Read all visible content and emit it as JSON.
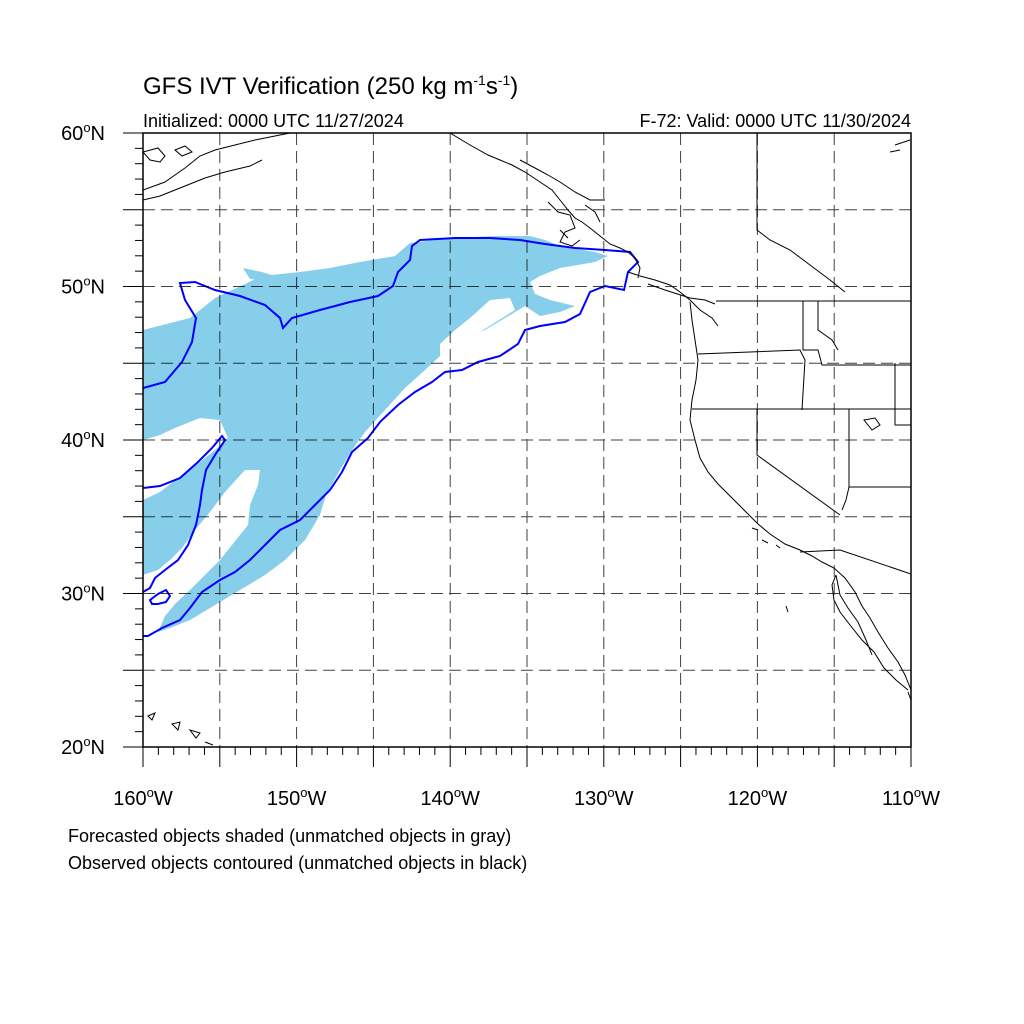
{
  "header": {
    "title_main": "GFS IVT Verification (250 kg m",
    "title_sup1": "-1",
    "title_mid": "s",
    "title_sup2": "-1",
    "title_end": ")",
    "initialized": "Initialized: 0000 UTC 11/27/2024",
    "valid": "F-72: Valid: 0000 UTC 11/30/2024"
  },
  "map": {
    "extent": {
      "lon_min": -160,
      "lon_max": -110,
      "lat_min": 20,
      "lat_max": 60
    },
    "lat_labels": [
      {
        "lat": 60,
        "deg": "60",
        "hemi": "N"
      },
      {
        "lat": 50,
        "deg": "50",
        "hemi": "N"
      },
      {
        "lat": 40,
        "deg": "40",
        "hemi": "N"
      },
      {
        "lat": 30,
        "deg": "30",
        "hemi": "N"
      },
      {
        "lat": 20,
        "deg": "20",
        "hemi": "N"
      }
    ],
    "lon_labels": [
      {
        "lon": -160,
        "deg": "160",
        "hemi": "W"
      },
      {
        "lon": -150,
        "deg": "150",
        "hemi": "W"
      },
      {
        "lon": -140,
        "deg": "140",
        "hemi": "W"
      },
      {
        "lon": -130,
        "deg": "130",
        "hemi": "W"
      },
      {
        "lon": -120,
        "deg": "120",
        "hemi": "W"
      },
      {
        "lon": -110,
        "deg": "110",
        "hemi": "W"
      }
    ],
    "gridline_lats": [
      55,
      50,
      45,
      40,
      35,
      30,
      25
    ],
    "gridline_lons": [
      -155,
      -150,
      -145,
      -140,
      -135,
      -130,
      -125,
      -120,
      -115
    ],
    "colors": {
      "forecast_fill": "#87ceeb",
      "observed_contour": "#0000ff",
      "coastline": "#000000",
      "grid": "#000000"
    }
  },
  "captions": {
    "line1": "Forecasted objects shaded (unmatched objects in gray)",
    "line2": "Observed objects contoured (unmatched objects in black)"
  }
}
